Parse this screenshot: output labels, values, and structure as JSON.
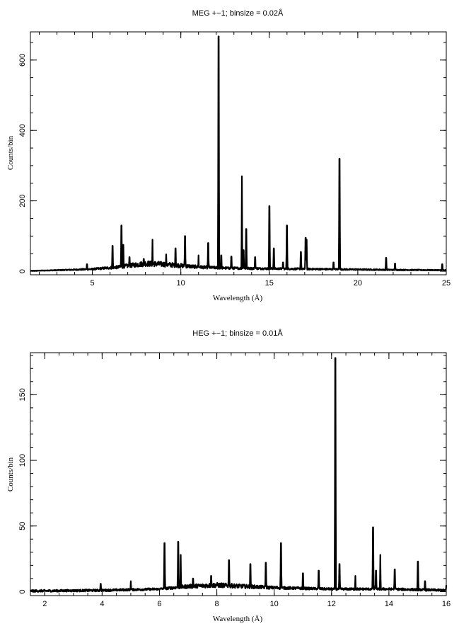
{
  "chart_data": [
    {
      "type": "line",
      "title": "MEG +−1; binsize = 0.02Å",
      "xlabel": "Wavelength (Å)",
      "ylabel": "Counts/bin",
      "xlim": [
        1.5,
        25
      ],
      "ylim": [
        -10,
        680
      ],
      "xticks": [
        5,
        10,
        15,
        20,
        25
      ],
      "yticks": [
        0,
        200,
        400,
        600
      ],
      "grid": false,
      "baseline": [
        [
          1.5,
          1
        ],
        [
          3,
          3
        ],
        [
          5,
          6
        ],
        [
          6.5,
          12
        ],
        [
          8,
          22
        ],
        [
          9,
          20
        ],
        [
          10,
          16
        ],
        [
          11,
          12
        ],
        [
          12.5,
          9
        ],
        [
          14,
          8
        ],
        [
          16,
          7
        ],
        [
          18,
          6
        ],
        [
          20,
          5
        ],
        [
          22,
          4
        ],
        [
          25,
          3
        ]
      ],
      "series": [
        {
          "lines": [
            [
              4.7,
              20
            ],
            [
              6.14,
              72
            ],
            [
              6.65,
              130
            ],
            [
              6.75,
              75
            ],
            [
              7.1,
              40
            ],
            [
              7.9,
              35
            ],
            [
              8.4,
              90
            ],
            [
              9.17,
              48
            ],
            [
              9.7,
              65
            ],
            [
              10.24,
              100
            ],
            [
              11.0,
              45
            ],
            [
              11.55,
              80
            ],
            [
              12.13,
              667
            ],
            [
              12.28,
              45
            ],
            [
              12.85,
              42
            ],
            [
              13.45,
              270
            ],
            [
              13.55,
              60
            ],
            [
              13.7,
              120
            ],
            [
              14.2,
              40
            ],
            [
              15.01,
              185
            ],
            [
              15.26,
              65
            ],
            [
              15.77,
              25
            ],
            [
              16.0,
              130
            ],
            [
              16.78,
              55
            ],
            [
              17.05,
              95
            ],
            [
              17.1,
              90
            ],
            [
              18.63,
              25
            ],
            [
              18.97,
              320
            ],
            [
              21.6,
              38
            ],
            [
              22.1,
              22
            ],
            [
              24.78,
              20
            ]
          ]
        }
      ]
    },
    {
      "type": "line",
      "title": "HEG +−1; binsize = 0.01Å",
      "xlabel": "Wavelength (Å)",
      "ylabel": "Counts/bin",
      "xlim": [
        1.5,
        16
      ],
      "ylim": [
        -3,
        182
      ],
      "xticks": [
        2,
        4,
        6,
        8,
        10,
        12,
        14,
        16
      ],
      "yticks": [
        0,
        50,
        100,
        150
      ],
      "grid": false,
      "baseline": [
        [
          1.5,
          0.5
        ],
        [
          4,
          1
        ],
        [
          6,
          2
        ],
        [
          7,
          4
        ],
        [
          8,
          5
        ],
        [
          9,
          4
        ],
        [
          10,
          3
        ],
        [
          12,
          2
        ],
        [
          14,
          2
        ],
        [
          16,
          1
        ]
      ],
      "series": [
        {
          "lines": [
            [
              3.95,
              6
            ],
            [
              5.0,
              8
            ],
            [
              6.18,
              37
            ],
            [
              6.65,
              38
            ],
            [
              6.74,
              28
            ],
            [
              7.17,
              10
            ],
            [
              7.8,
              12
            ],
            [
              8.42,
              24
            ],
            [
              9.17,
              21
            ],
            [
              9.71,
              22
            ],
            [
              10.24,
              37
            ],
            [
              11.0,
              14
            ],
            [
              11.55,
              16
            ],
            [
              12.13,
              178
            ],
            [
              12.28,
              21
            ],
            [
              12.83,
              12
            ],
            [
              13.45,
              49
            ],
            [
              13.55,
              16
            ],
            [
              13.7,
              28
            ],
            [
              14.2,
              17
            ],
            [
              15.01,
              23
            ],
            [
              15.26,
              8
            ],
            [
              16.0,
              5
            ]
          ]
        }
      ]
    }
  ]
}
